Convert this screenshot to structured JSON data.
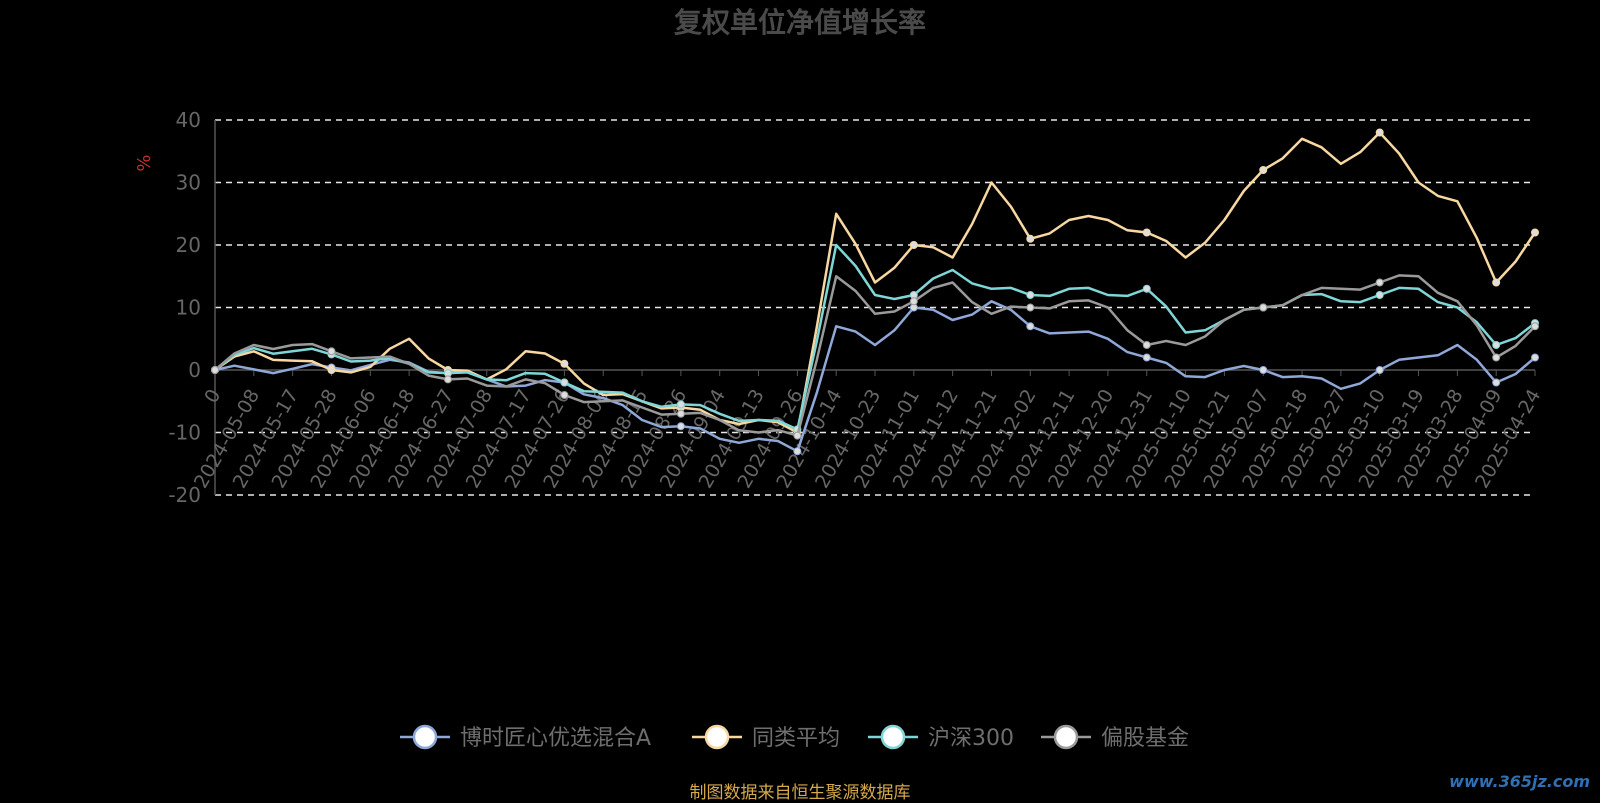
{
  "chart_data": {
    "type": "line",
    "title": "复权单位净值增长率",
    "ylabel": "%",
    "ylim": [
      -20,
      40
    ],
    "yticks": [
      -20,
      -10,
      0,
      10,
      20,
      30,
      40
    ],
    "x_ticks": [
      "0",
      "2024-05-08",
      "2024-05-17",
      "2024-05-28",
      "2024-06-06",
      "2024-06-18",
      "2024-06-27",
      "2024-07-08",
      "2024-07-17",
      "2024-07-26",
      "2024-08-06",
      "2024-08-15",
      "2024-08-26",
      "2024-09-04",
      "2024-09-13",
      "2024-09-26",
      "2024-10-14",
      "2024-10-23",
      "2024-11-01",
      "2024-11-12",
      "2024-11-21",
      "2024-12-02",
      "2024-12-11",
      "2024-12-20",
      "2024-12-31",
      "2025-01-10",
      "2025-01-21",
      "2025-02-07",
      "2025-02-18",
      "2025-02-27",
      "2025-03-10",
      "2025-03-19",
      "2025-03-28",
      "2025-04-09",
      "2025-04-24"
    ],
    "grid": true,
    "legend_position": "bottom",
    "series": [
      {
        "name": "博时匠心优选混合A",
        "color": "#8fa8d8",
        "values": [
          0,
          0.1,
          0.2,
          0.4,
          0.8,
          1.2,
          -0.5,
          -1.5,
          -2.5,
          -2.0,
          -4.5,
          -8,
          -9,
          -11,
          -11,
          -13,
          7,
          4,
          10,
          8,
          11,
          7,
          6,
          5,
          2,
          -1,
          0,
          0,
          -1,
          -3,
          0,
          2,
          4,
          -2,
          2
        ]
      },
      {
        "name": "同类平均",
        "color": "#f8d8a0",
        "values": [
          0,
          3,
          1.5,
          0,
          0.5,
          5,
          0,
          -1.5,
          3,
          1,
          -4,
          -5,
          -6,
          -8,
          -8,
          -10,
          25,
          14,
          20,
          18,
          30,
          21,
          24,
          24,
          22,
          18,
          24,
          32,
          37,
          33,
          38,
          30,
          27,
          14,
          22
        ]
      },
      {
        "name": "沪深300",
        "color": "#7fd6d6",
        "values": [
          0,
          3.5,
          3,
          2.5,
          1.5,
          1,
          -0.5,
          -1.5,
          -0.5,
          -2,
          -3.5,
          -5,
          -5.5,
          -7,
          -8,
          -9.5,
          20,
          12,
          12,
          16,
          13,
          12,
          13,
          12,
          13,
          6,
          8,
          10,
          12,
          11,
          12,
          13,
          10,
          4,
          7.5
        ]
      },
      {
        "name": "偏股基金",
        "color": "#9a9a9a",
        "values": [
          0,
          4,
          4,
          3,
          2,
          1,
          -1.5,
          -2.5,
          -1.5,
          -4,
          -5,
          -6,
          -7,
          -8,
          -10,
          -10.5,
          15,
          9,
          11,
          14,
          9,
          10,
          11,
          10,
          4,
          4,
          8,
          10,
          12,
          13,
          14,
          15,
          11,
          2,
          7
        ]
      }
    ]
  },
  "source_text": "制图数据来自恒生聚源数据库",
  "watermark": "www.365jz.com"
}
